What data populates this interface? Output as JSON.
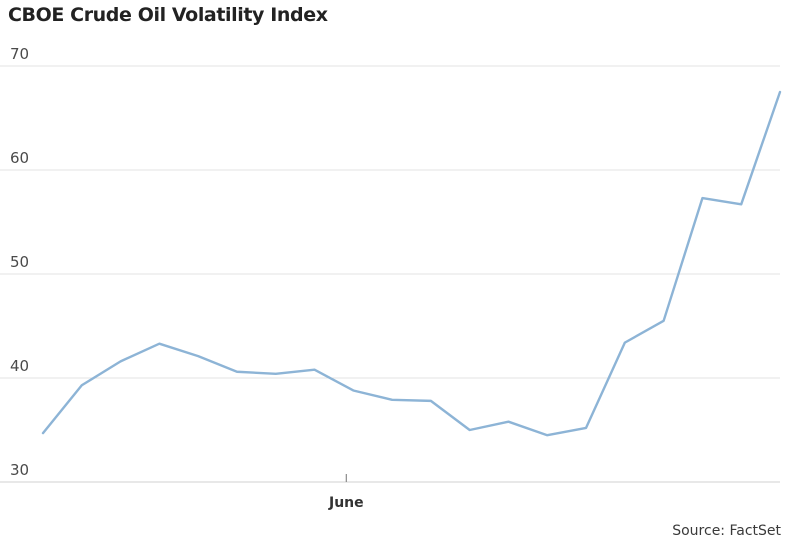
{
  "title": "CBOE Crude Oil Volatility Index",
  "source": "Source: FactSet",
  "colors": {
    "line": "#8db4d6",
    "grid": "#e3e3e3",
    "axis": "#d0d0d0"
  },
  "chart_data": {
    "type": "line",
    "title": "CBOE Crude Oil Volatility Index",
    "xlabel": "",
    "ylabel": "",
    "ylim": [
      30,
      70
    ],
    "yticks": [
      30,
      40,
      50,
      60,
      70
    ],
    "x_tick_labels": [
      "June"
    ],
    "x_tick_index": 8,
    "grid": true,
    "series": [
      {
        "values": [
          34.7,
          39.3,
          41.6,
          43.3,
          42.1,
          40.6,
          40.4,
          40.8,
          38.8,
          37.9,
          37.8,
          35.0,
          35.8,
          34.5,
          35.2,
          43.4,
          45.5,
          57.3,
          56.7,
          67.5
        ]
      }
    ]
  }
}
